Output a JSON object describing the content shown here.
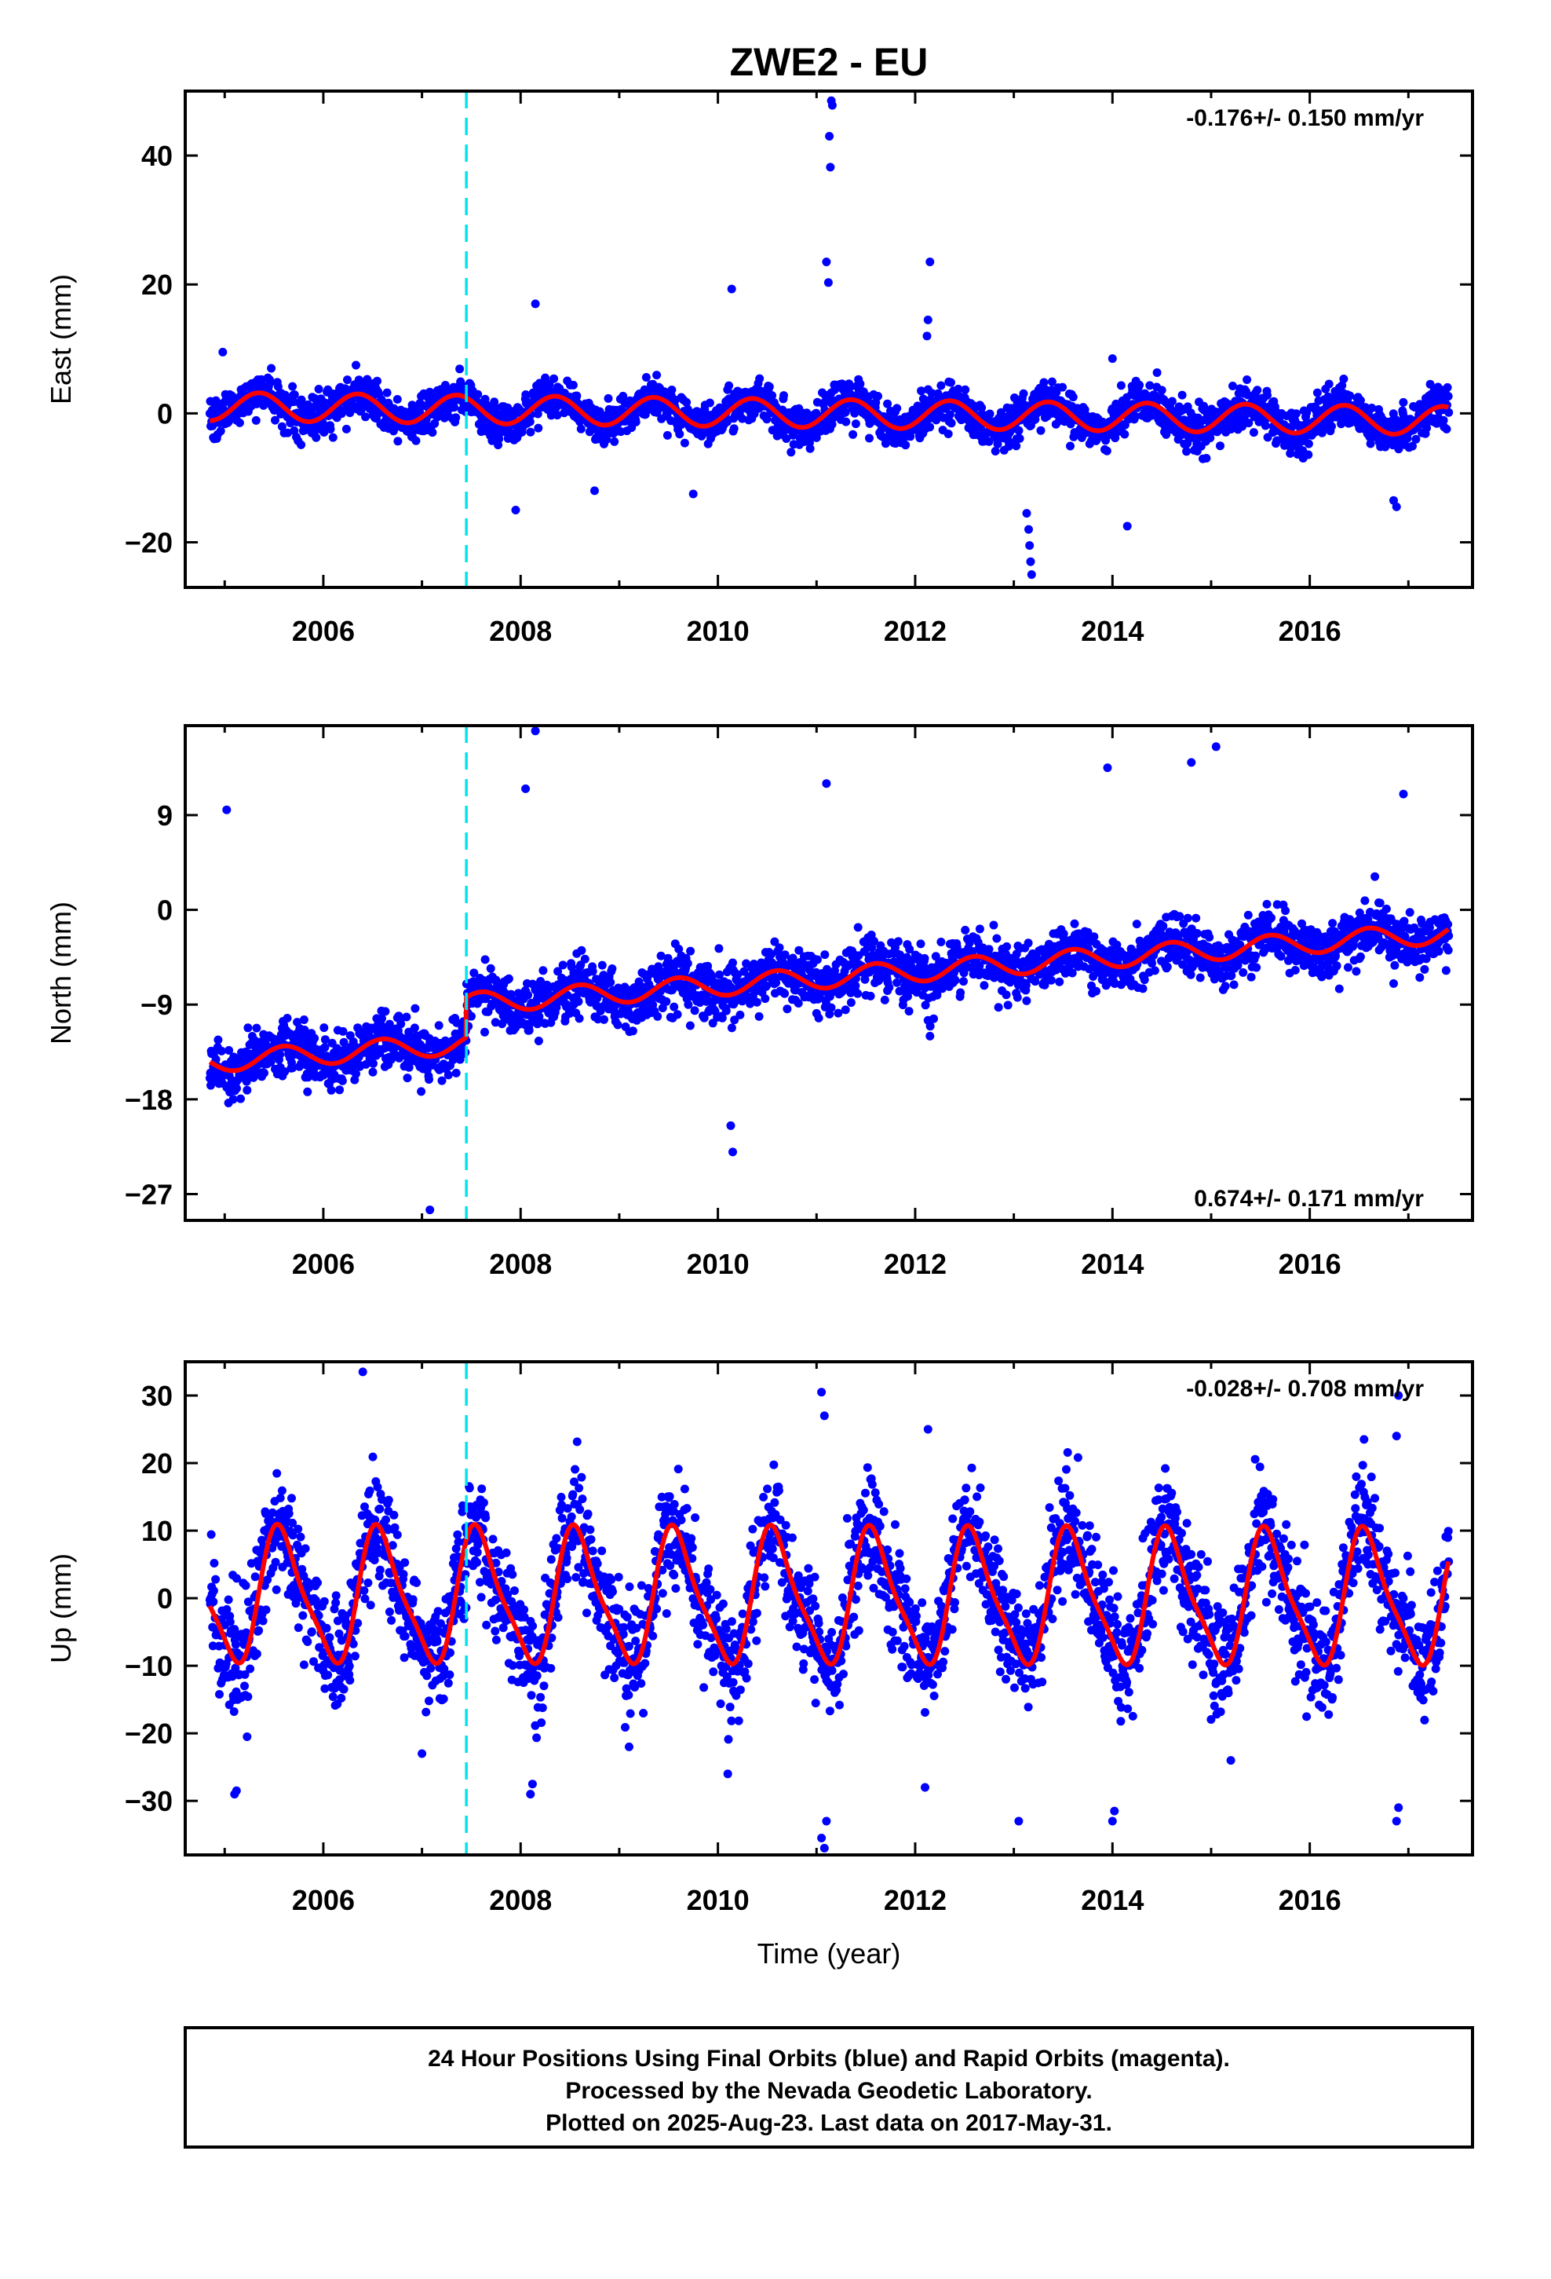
{
  "figure": {
    "title": "ZWE2 - EU",
    "caption": [
      "24 Hour Positions Using Final Orbits (blue) and Rapid Orbits (magenta).",
      "Processed by the Nevada Geodetic Laboratory.",
      "Plotted on 2025-Aug-23. Last data on 2017-May-31."
    ]
  },
  "colors": {
    "points": "#0000ff",
    "model": "#ff0000",
    "offset": "#00e5ee",
    "frame": "#000000"
  },
  "chart_data": [
    {
      "type": "scatter",
      "ylabel": "East (mm)",
      "xlabel": "",
      "rate": "-0.176+/- 0.150 mm/yr",
      "rate_position": "top-right",
      "xlim": [
        2004.6,
        2017.65
      ],
      "ylim": [
        -27,
        50
      ],
      "xticks": [
        2006,
        2008,
        2010,
        2012,
        2014,
        2016
      ],
      "xtick_labels": [
        "2006",
        "2008",
        "2010",
        "2012",
        "2014",
        "2016"
      ],
      "yticks": [
        -20,
        0,
        20,
        40
      ],
      "ytick_labels": [
        "−20",
        "0",
        "20",
        "40"
      ],
      "offset_epoch": 2007.45,
      "data_span": [
        2004.85,
        2017.41
      ],
      "model": {
        "offset": 0.0,
        "trend": -0.176,
        "pre_offset_shift": 0.0,
        "annual_amp": 2.2,
        "annual_phase_year": 2005.35
      },
      "scatter_sd": 1.6,
      "outliers": [
        [
          2011.15,
          48.5
        ],
        [
          2011.16,
          47.8
        ],
        [
          2011.13,
          43.0
        ],
        [
          2011.14,
          38.2
        ],
        [
          2011.1,
          23.5
        ],
        [
          2011.12,
          20.3
        ],
        [
          2012.15,
          23.5
        ],
        [
          2012.13,
          14.5
        ],
        [
          2012.12,
          12.0
        ],
        [
          2010.14,
          19.3
        ],
        [
          2008.15,
          17.0
        ],
        [
          2013.13,
          -15.5
        ],
        [
          2013.15,
          -18.0
        ],
        [
          2013.16,
          -20.5
        ],
        [
          2013.17,
          -23.0
        ],
        [
          2013.18,
          -25.0
        ],
        [
          2014.15,
          -17.5
        ],
        [
          2016.85,
          -13.5
        ],
        [
          2016.88,
          -14.5
        ],
        [
          2007.95,
          -15.0
        ],
        [
          2009.75,
          -12.5
        ],
        [
          2008.75,
          -12.0
        ],
        [
          2004.98,
          9.5
        ],
        [
          2014.0,
          8.5
        ]
      ]
    },
    {
      "type": "scatter",
      "ylabel": "North (mm)",
      "xlabel": "",
      "rate": "0.674+/- 0.171 mm/yr",
      "rate_position": "bottom-right",
      "xlim": [
        2004.6,
        2017.65
      ],
      "ylim": [
        -29.5,
        17.5
      ],
      "xticks": [
        2006,
        2008,
        2010,
        2012,
        2014,
        2016
      ],
      "xtick_labels": [
        "2006",
        "2008",
        "2010",
        "2012",
        "2014",
        "2016"
      ],
      "yticks": [
        -27,
        -18,
        -9,
        0,
        9
      ],
      "ytick_labels": [
        "−27",
        "−18",
        "−9",
        "0",
        "9"
      ],
      "offset_epoch": 2007.45,
      "data_span": [
        2004.85,
        2017.41
      ],
      "model": {
        "offset": -6.5,
        "trend": 0.674,
        "pre_offset_shift": -3.8,
        "annual_amp": 1.0,
        "annual_phase_year": 2005.6
      },
      "scatter_sd": 1.3,
      "outliers": [
        [
          2005.02,
          9.5
        ],
        [
          2007.08,
          -28.5
        ],
        [
          2010.13,
          -20.5
        ],
        [
          2010.15,
          -23.0
        ],
        [
          2008.15,
          17.0
        ],
        [
          2008.05,
          11.5
        ],
        [
          2011.1,
          12.0
        ],
        [
          2013.95,
          13.5
        ],
        [
          2014.8,
          14.0
        ],
        [
          2015.05,
          15.5
        ],
        [
          2016.95,
          11.0
        ],
        [
          2012.13,
          -10.5
        ],
        [
          2012.15,
          -12.0
        ],
        [
          2016.3,
          -7.5
        ],
        [
          2016.85,
          -7.0
        ],
        [
          2013.9,
          -6.5
        ],
        [
          2009.7,
          -9.0
        ],
        [
          2009.72,
          -11.0
        ],
        [
          2005.4,
          -15.5
        ],
        [
          2006.05,
          -16.5
        ]
      ]
    },
    {
      "type": "scatter",
      "ylabel": "Up (mm)",
      "xlabel": "Time (year)",
      "rate": "-0.028+/- 0.708 mm/yr",
      "rate_position": "top-right",
      "xlim": [
        2004.6,
        2017.65
      ],
      "ylim": [
        -38,
        35
      ],
      "xticks": [
        2006,
        2008,
        2010,
        2012,
        2014,
        2016
      ],
      "xtick_labels": [
        "2006",
        "2008",
        "2010",
        "2012",
        "2014",
        "2016"
      ],
      "yticks": [
        -30,
        -20,
        -10,
        0,
        10,
        20,
        30
      ],
      "ytick_labels": [
        "−30",
        "−20",
        "−10",
        "0",
        "10",
        "20",
        "30"
      ],
      "offset_epoch": 2007.45,
      "data_span": [
        2004.85,
        2017.41
      ],
      "model": {
        "offset": 0.0,
        "trend": -0.028,
        "pre_offset_shift": 0.0,
        "annual_amp": 9.5,
        "annual_phase_year": 2005.58,
        "semiannual_amp": 2.2,
        "semiannual_phase_year": 2005.48
      },
      "scatter_sd": 4.2,
      "outliers": [
        [
          2006.4,
          33.5
        ],
        [
          2011.05,
          30.5
        ],
        [
          2011.08,
          27.0
        ],
        [
          2016.9,
          30.0
        ],
        [
          2016.88,
          24.0
        ],
        [
          2012.13,
          25.0
        ],
        [
          2016.55,
          23.5
        ],
        [
          2011.05,
          -35.5
        ],
        [
          2011.08,
          -37.0
        ],
        [
          2011.1,
          -33.0
        ],
        [
          2016.88,
          -33.0
        ],
        [
          2016.9,
          -31.0
        ],
        [
          2013.05,
          -33.0
        ],
        [
          2014.0,
          -33.0
        ],
        [
          2014.02,
          -31.5
        ],
        [
          2008.1,
          -29.0
        ],
        [
          2008.12,
          -27.5
        ],
        [
          2005.1,
          -29.0
        ],
        [
          2005.12,
          -28.5
        ],
        [
          2010.1,
          -26.0
        ],
        [
          2012.1,
          -28.0
        ],
        [
          2007.0,
          -23.0
        ],
        [
          2015.2,
          -24.0
        ],
        [
          2009.1,
          -22.0
        ]
      ]
    }
  ]
}
